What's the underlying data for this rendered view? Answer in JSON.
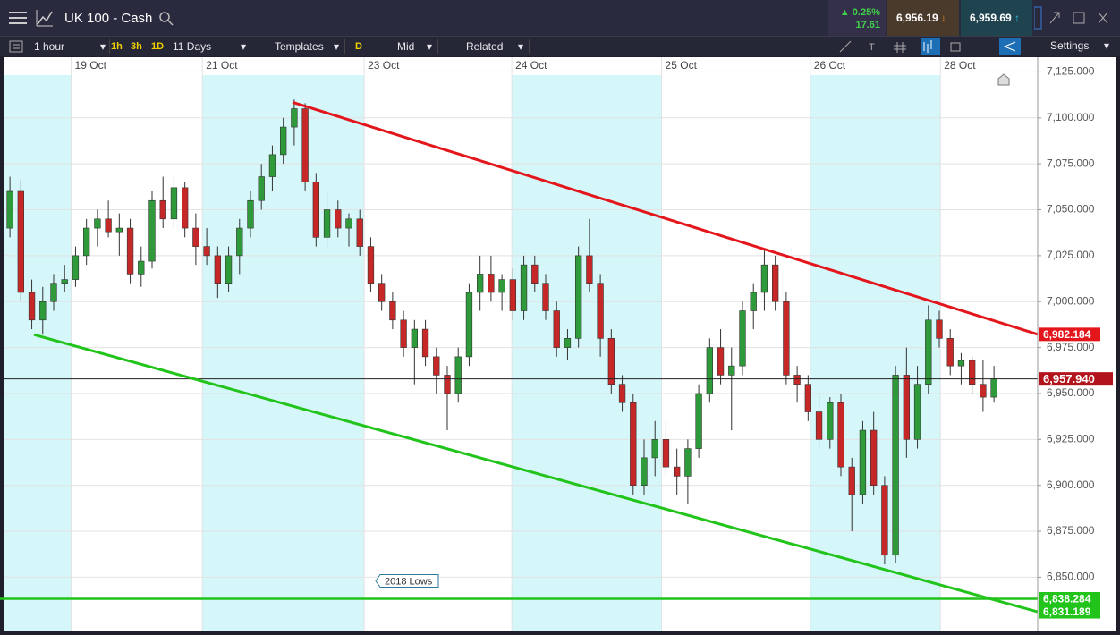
{
  "header": {
    "title": "UK 100 - Cash",
    "change_pct": "0.25%",
    "change": "17.61",
    "sell": "6,956.19",
    "buy": "6,959.69"
  },
  "toolbar": {
    "interval": "1 hour",
    "quick": [
      "1h",
      "3h",
      "1D"
    ],
    "range": "11 Days",
    "templates": "Templates",
    "d": "D",
    "price": "Mid",
    "related": "Related",
    "settings": "Settings"
  },
  "chart_data": {
    "type": "candlestick",
    "up_color": "#2e9a3a",
    "down_color": "#c62828",
    "band_color": "#d5f7f9",
    "grid": true,
    "xlim": [
      -0.5,
      94
    ],
    "xticks": [
      {
        "value": 5.6,
        "label": "19 Oct"
      },
      {
        "value": 17.6,
        "label": "21 Oct"
      },
      {
        "value": 32.4,
        "label": "23 Oct"
      },
      {
        "value": 45.9,
        "label": "24 Oct"
      },
      {
        "value": 59.6,
        "label": "25 Oct"
      },
      {
        "value": 73.2,
        "label": "26 Oct"
      },
      {
        "value": 85.1,
        "label": "28 Oct"
      }
    ],
    "ylim": [
      6821,
      7133
    ],
    "yticks": [
      {
        "value": 6850,
        "label": "6,850.000"
      },
      {
        "value": 6875,
        "label": "6,875.000"
      },
      {
        "value": 6900,
        "label": "6,900.000"
      },
      {
        "value": 6925,
        "label": "6,925.000"
      },
      {
        "value": 6950,
        "label": "6,950.000"
      },
      {
        "value": 6975,
        "label": "6,975.000"
      },
      {
        "value": 7000,
        "label": "7,000.000"
      },
      {
        "value": 7025,
        "label": "7,025.000"
      },
      {
        "value": 7050,
        "label": "7,050.000"
      },
      {
        "value": 7075,
        "label": "7,075.000"
      },
      {
        "value": 7100,
        "label": "7,100.000"
      },
      {
        "value": 7125,
        "label": "7,125.000"
      }
    ],
    "open": [
      7040,
      7060,
      7005,
      6990,
      7000,
      7010,
      7012,
      7025,
      7040,
      7045,
      7038,
      7040,
      7015,
      7022,
      7055,
      7045,
      7062,
      7040,
      7030,
      7025,
      7010,
      7025,
      7040,
      7055,
      7068,
      7080,
      7095,
      7105,
      7065,
      7035,
      7050,
      7040,
      7045,
      7030,
      7010,
      7000,
      6990,
      6975,
      6985,
      6970,
      6960,
      6950,
      6970,
      7005,
      7015,
      7005,
      7012,
      6995,
      7020,
      7010,
      6995,
      6975,
      6980,
      7025,
      7010,
      6980,
      6955,
      6945,
      6900,
      6915,
      6925,
      6910,
      6905,
      6920,
      6950,
      6975,
      6960,
      6965,
      6995,
      7005,
      7020,
      7000,
      6960,
      6955,
      6940,
      6925,
      6945,
      6910,
      6895,
      6930,
      6900,
      6862,
      6960,
      6925,
      6955,
      6990,
      6980,
      6965,
      6968,
      6955,
      6948
    ],
    "high": [
      7068,
      7066,
      7012,
      7008,
      7015,
      7020,
      7030,
      7045,
      7050,
      7055,
      7048,
      7045,
      7030,
      7060,
      7068,
      7068,
      7065,
      7048,
      7040,
      7030,
      7030,
      7045,
      7060,
      7075,
      7085,
      7100,
      7110,
      7108,
      7070,
      7060,
      7055,
      7048,
      7050,
      7035,
      7015,
      7005,
      6995,
      6990,
      6990,
      6975,
      6965,
      6975,
      7010,
      7025,
      7025,
      7015,
      7018,
      7025,
      7025,
      7015,
      7000,
      6985,
      7030,
      7045,
      7015,
      6985,
      6960,
      6950,
      6925,
      6935,
      6935,
      6920,
      6925,
      6955,
      6980,
      6985,
      6975,
      7000,
      7010,
      7028,
      7025,
      7005,
      6965,
      6960,
      6950,
      6948,
      6950,
      6915,
      6935,
      6940,
      6905,
      6965,
      6975,
      6965,
      6998,
      6995,
      6985,
      6972,
      6970,
      6968,
      6965
    ],
    "low": [
      7035,
      7000,
      6985,
      6982,
      6995,
      7005,
      7008,
      7020,
      7030,
      7035,
      7025,
      7010,
      7008,
      7018,
      7040,
      7040,
      7035,
      7020,
      7020,
      7002,
      7005,
      7015,
      7035,
      7050,
      7060,
      7075,
      7085,
      7060,
      7030,
      7030,
      7035,
      7030,
      7025,
      7005,
      6995,
      6985,
      6970,
      6955,
      6965,
      6950,
      6930,
      6945,
      6965,
      6995,
      7000,
      6995,
      6990,
      6990,
      7005,
      6990,
      6970,
      6968,
      6975,
      7005,
      6970,
      6950,
      6940,
      6895,
      6895,
      6905,
      6905,
      6895,
      6890,
      6915,
      6945,
      6955,
      6930,
      6960,
      6985,
      6995,
      6995,
      6955,
      6945,
      6935,
      6920,
      6920,
      6905,
      6875,
      6890,
      6895,
      6857,
      6858,
      6915,
      6920,
      6950,
      6975,
      6960,
      6955,
      6950,
      6940,
      6945
    ],
    "close": [
      7060,
      7005,
      6990,
      7000,
      7010,
      7012,
      7025,
      7040,
      7045,
      7038,
      7040,
      7015,
      7022,
      7055,
      7045,
      7062,
      7040,
      7030,
      7025,
      7010,
      7025,
      7040,
      7055,
      7068,
      7080,
      7095,
      7105,
      7065,
      7035,
      7050,
      7040,
      7045,
      7030,
      7010,
      7000,
      6990,
      6975,
      6985,
      6970,
      6960,
      6950,
      6970,
      7005,
      7015,
      7005,
      7012,
      6995,
      7020,
      7010,
      6995,
      6975,
      6980,
      7025,
      7010,
      6980,
      6955,
      6945,
      6900,
      6915,
      6925,
      6910,
      6905,
      6920,
      6950,
      6975,
      6960,
      6965,
      6995,
      7005,
      7020,
      7000,
      6960,
      6955,
      6940,
      6925,
      6945,
      6910,
      6895,
      6930,
      6900,
      6862,
      6960,
      6925,
      6955,
      6990,
      6980,
      6965,
      6968,
      6955,
      6948,
      6958
    ],
    "lines": [
      {
        "color": "#e3161c",
        "x": [
          25.85,
          94
        ],
        "y": [
          7108.5,
          6982.184
        ],
        "label": "6,982.184"
      },
      {
        "color": "#22c41c",
        "x": [
          2.2,
          94
        ],
        "y": [
          6982,
          6831.189
        ],
        "label": "6,831.189"
      }
    ],
    "hlines": [
      {
        "value": 6957.94,
        "label": "6,957.940",
        "color": "#222222",
        "tag_color": "#b3141b"
      },
      {
        "value": 6838.284,
        "label": "6,838.284",
        "color": "#22c41c",
        "tag_color": "#22c41c",
        "annotation": "2018 Lows"
      }
    ]
  }
}
